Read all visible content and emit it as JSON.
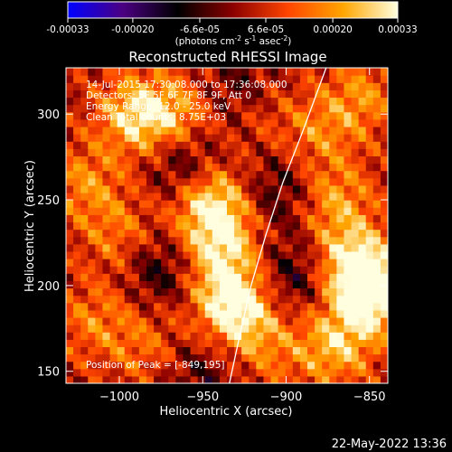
{
  "colorbar": {
    "tick_labels": [
      "-0.00033",
      "-0.00020",
      "-6.6e-05",
      "6.6e-05",
      "0.00020",
      "0.00033"
    ],
    "tick_values": [
      -0.00033,
      -0.0002,
      -6.6e-05,
      6.6e-05,
      0.0002,
      0.00033
    ],
    "range": [
      -0.00033,
      0.00033
    ],
    "units_main": "(photons cm",
    "units_exp1": "-2",
    "units_mid1": " s",
    "units_exp2": "-1",
    "units_mid2": " asec",
    "units_exp3": "-2",
    "units_end": ")",
    "colors": [
      "#0000ff",
      "#4b0082",
      "#000000",
      "#8b0000",
      "#ff4500",
      "#ffa500",
      "#ffffe0"
    ]
  },
  "chart_data": {
    "type": "heatmap",
    "title": "Reconstructed RHESSI Image",
    "xlabel": "Heliocentric X (arcsec)",
    "ylabel": "Heliocentric Y (arcsec)",
    "xlim": [
      -1032,
      -839
    ],
    "ylim": [
      143,
      327
    ],
    "x_ticks": [
      -1000,
      -950,
      -900,
      -850
    ],
    "x_tick_labels": [
      "−1000",
      "−950",
      "−900",
      "−850"
    ],
    "y_ticks": [
      150,
      200,
      250,
      300
    ],
    "y_tick_labels": [
      "150",
      "200",
      "250",
      "300"
    ],
    "info_lines": [
      "14-Jul-2015 17:30:08.000 to 17:36:08.000",
      "Detectors: 3F 5F 6F 7F 8F 9F, Att 0",
      "Energy Range: 12.0 - 25.0 keV",
      "Clean    Total counts: 8.75E+03"
    ],
    "peak_label": "Position of Peak = [-849,195]",
    "peak": {
      "x": -849,
      "y": 195
    },
    "limb_points": [
      [
        -934,
        143
      ],
      [
        -928,
        170
      ],
      [
        -921,
        200
      ],
      [
        -912,
        230
      ],
      [
        -902,
        260
      ],
      [
        -890,
        290
      ],
      [
        -876,
        327
      ]
    ],
    "intensity_knots": [
      {
        "x": -990,
        "y": 300,
        "v": 0.00024
      },
      {
        "x": -965,
        "y": 300,
        "v": 0.00016
      },
      {
        "x": -1020,
        "y": 260,
        "v": 0.00014
      },
      {
        "x": -1000,
        "y": 230,
        "v": 0.00012
      },
      {
        "x": -1015,
        "y": 180,
        "v": 0.00012
      },
      {
        "x": -985,
        "y": 165,
        "v": 0.0001
      },
      {
        "x": -945,
        "y": 250,
        "v": 0.00026
      },
      {
        "x": -940,
        "y": 225,
        "v": 0.00022
      },
      {
        "x": -935,
        "y": 195,
        "v": 0.00022
      },
      {
        "x": -925,
        "y": 180,
        "v": 0.00018
      },
      {
        "x": -915,
        "y": 300,
        "v": 6e-05
      },
      {
        "x": -905,
        "y": 160,
        "v": 8e-05
      },
      {
        "x": -870,
        "y": 250,
        "v": 0.00016
      },
      {
        "x": -880,
        "y": 290,
        "v": 0.00012
      },
      {
        "x": -855,
        "y": 310,
        "v": 0.00014
      },
      {
        "x": -849,
        "y": 195,
        "v": 0.00033
      },
      {
        "x": -860,
        "y": 215,
        "v": 0.00024
      },
      {
        "x": -870,
        "y": 165,
        "v": 0.0002
      },
      {
        "x": -975,
        "y": 210,
        "v": -0.00014
      },
      {
        "x": -960,
        "y": 270,
        "v": -0.00016
      },
      {
        "x": -905,
        "y": 255,
        "v": -0.00012
      },
      {
        "x": -895,
        "y": 205,
        "v": -0.00014
      },
      {
        "x": -950,
        "y": 150,
        "v": -0.0001
      },
      {
        "x": -930,
        "y": 315,
        "v": -0.0001
      }
    ]
  },
  "footer": {
    "timestamp": "22-May-2022 13:36"
  }
}
